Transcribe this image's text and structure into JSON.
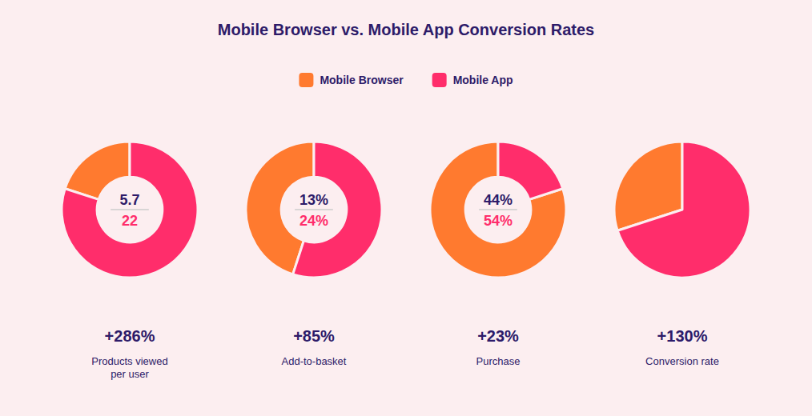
{
  "title": "Mobile Browser vs. Mobile App Conversion Rates",
  "chart_data": [
    {
      "type": "donut",
      "categories": [
        "Mobile Browser",
        "Mobile App"
      ],
      "values": [
        20.0,
        80.0
      ],
      "colors": [
        "#FF7A2F",
        "#FF2D6B"
      ],
      "annotations": [
        "5.7",
        "22"
      ],
      "title": "+286%",
      "subtitle": "Products viewed\nper user",
      "legend": "top"
    },
    {
      "type": "donut",
      "categories": [
        "Mobile Browser",
        "Mobile App"
      ],
      "values": [
        45.0,
        55.0
      ],
      "colors": [
        "#FF7A2F",
        "#FF2D6B"
      ],
      "annotations": [
        "13%",
        "24%"
      ],
      "title": "+85%",
      "subtitle": "Add-to-basket"
    },
    {
      "type": "donut",
      "categories": [
        "Mobile Browser",
        "Mobile App"
      ],
      "values": [
        80.0,
        20.0
      ],
      "colors": [
        "#FF7A2F",
        "#FF2D6B"
      ],
      "annotations": [
        "44%",
        "54%"
      ],
      "title": "+23%",
      "subtitle": "Purchase"
    },
    {
      "type": "pie",
      "categories": [
        "Mobile Browser",
        "Mobile App"
      ],
      "values": [
        30.0,
        70.0
      ],
      "colors": [
        "#FF7A2F",
        "#FF2D6B"
      ],
      "title": "+130%",
      "subtitle": "Conversion rate"
    }
  ]
}
